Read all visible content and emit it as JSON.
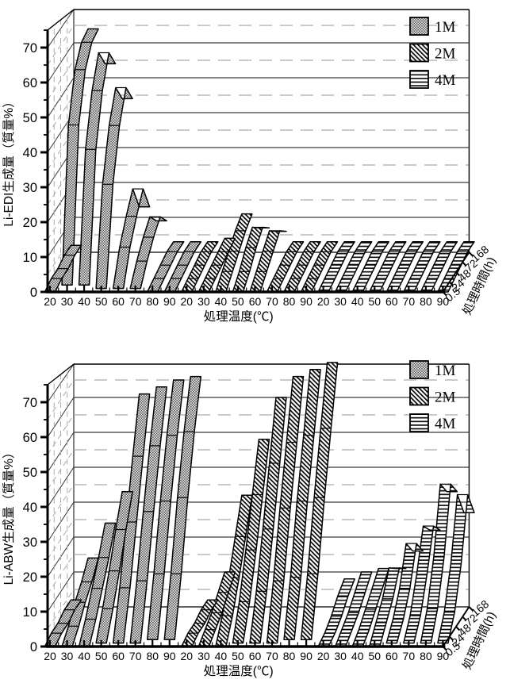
{
  "page": {
    "background": "#ffffff"
  },
  "colors": {
    "ink": "#000000",
    "grid_major": "#3a3a3a",
    "grid_minor": "#ababab",
    "ribbon_fill_base": "#ffffff"
  },
  "chart_data": [
    {
      "name": "li-edi-chart",
      "type": "area",
      "subtype": "3d-ribbon",
      "title": "",
      "ylabel": "Li-EDI生成量（質量%）",
      "xlabel": "処理温度(℃)",
      "zlabel": "処理時間(h)",
      "ylim": [
        0,
        75
      ],
      "y_ticks": [
        0,
        10,
        20,
        30,
        40,
        50,
        60,
        70
      ],
      "grid": "on",
      "legend_position": "top-right",
      "temperatures": [
        "20",
        "30",
        "40",
        "50",
        "60",
        "70",
        "80",
        "90"
      ],
      "time_ticks": [
        "0.5",
        "24",
        "48",
        "72",
        "168"
      ],
      "legend": [
        {
          "label": "1M",
          "pattern": "dots"
        },
        {
          "label": "2M",
          "pattern": "diag"
        },
        {
          "label": "4M",
          "pattern": "hlines"
        }
      ],
      "series": [
        {
          "name": "1M",
          "pattern": "dots",
          "values_by_temp": [
            [
              0,
              1,
              1,
              2,
              2
            ],
            [
              2,
              45,
              58,
              63,
              64
            ],
            [
              2,
              38,
              52,
              60,
              54
            ],
            [
              1,
              28,
              42,
              50,
              44
            ],
            [
              1,
              10,
              16,
              21,
              13
            ],
            [
              1,
              6,
              10,
              13,
              9
            ],
            [
              0,
              1,
              2,
              3,
              3
            ],
            [
              0,
              1,
              2,
              3,
              3
            ]
          ]
        },
        {
          "name": "2M",
          "pattern": "diag",
          "values_by_temp": [
            [
              0,
              1,
              2,
              3,
              3
            ],
            [
              0,
              1,
              2,
              3,
              4
            ],
            [
              0,
              3,
              6,
              9,
              11
            ],
            [
              0,
              3,
              7,
              10,
              7
            ],
            [
              0,
              3,
              6,
              9,
              6
            ],
            [
              0,
              1,
              2,
              3,
              3
            ],
            [
              0,
              1,
              2,
              3,
              3
            ],
            [
              0,
              1,
              2,
              3,
              3
            ]
          ]
        },
        {
          "name": "4M",
          "pattern": "hlines",
          "values_by_temp": [
            [
              0,
              1,
              2,
              3,
              3
            ],
            [
              0,
              1,
              2,
              3,
              3
            ],
            [
              0,
              1,
              2,
              3,
              3
            ],
            [
              0,
              1,
              2,
              3,
              3
            ],
            [
              0,
              1,
              2,
              3,
              3
            ],
            [
              0,
              1,
              2,
              3,
              3
            ],
            [
              0,
              1,
              2,
              3,
              3
            ],
            [
              0,
              1,
              2,
              3,
              3
            ]
          ]
        }
      ]
    },
    {
      "name": "li-abw-chart",
      "type": "area",
      "subtype": "3d-ribbon",
      "title": "",
      "ylabel": "Li-ABW生成量（質量%）",
      "xlabel": "処理温度(℃)",
      "zlabel": "処理時間(h)",
      "ylim": [
        0,
        75
      ],
      "y_ticks": [
        0,
        10,
        20,
        30,
        40,
        50,
        60,
        70
      ],
      "grid": "on",
      "legend_position": "top-right",
      "temperatures": [
        "20",
        "30",
        "40",
        "50",
        "60",
        "70",
        "80",
        "90"
      ],
      "time_ticks": [
        "0.5",
        "24",
        "48",
        "72",
        "168"
      ],
      "legend": [
        {
          "label": "1M",
          "pattern": "dots"
        },
        {
          "label": "2M",
          "pattern": "diag"
        },
        {
          "label": "4M",
          "pattern": "hlines"
        }
      ],
      "series": [
        {
          "name": "1M",
          "pattern": "dots",
          "values_by_temp": [
            [
              0,
              1,
              1,
              2,
              2
            ],
            [
              0,
              3,
              7,
              10,
              14
            ],
            [
              0,
              5,
              11,
              17,
              24
            ],
            [
              1,
              8,
              16,
              25,
              33
            ],
            [
              1,
              14,
              30,
              46,
              61
            ],
            [
              1,
              16,
              33,
              49,
              63
            ],
            [
              2,
              18,
              36,
              52,
              65
            ],
            [
              2,
              18,
              37,
              53,
              66
            ]
          ]
        },
        {
          "name": "2M",
          "pattern": "diag",
          "values_by_temp": [
            [
              0,
              1,
              1,
              2,
              2
            ],
            [
              0,
              2,
              4,
              7,
              10
            ],
            [
              0,
              6,
              14,
              23,
              32
            ],
            [
              1,
              10,
              22,
              35,
              48
            ],
            [
              1,
              13,
              28,
              44,
              60
            ],
            [
              1,
              16,
              34,
              50,
              66
            ],
            [
              2,
              17,
              36,
              52,
              68
            ],
            [
              2,
              18,
              37,
              54,
              70
            ]
          ]
        },
        {
          "name": "4M",
          "pattern": "hlines",
          "values_by_temp": [
            [
              0,
              1,
              3,
              6,
              8
            ],
            [
              0,
              2,
              4,
              7,
              10
            ],
            [
              0,
              2,
              5,
              8,
              11
            ],
            [
              0,
              4,
              8,
              14,
              11
            ],
            [
              1,
              5,
              11,
              21,
              16
            ],
            [
              1,
              6,
              15,
              26,
              22
            ],
            [
              1,
              8,
              20,
              38,
              33
            ],
            [
              1,
              7,
              18,
              35,
              27
            ]
          ]
        }
      ]
    }
  ]
}
